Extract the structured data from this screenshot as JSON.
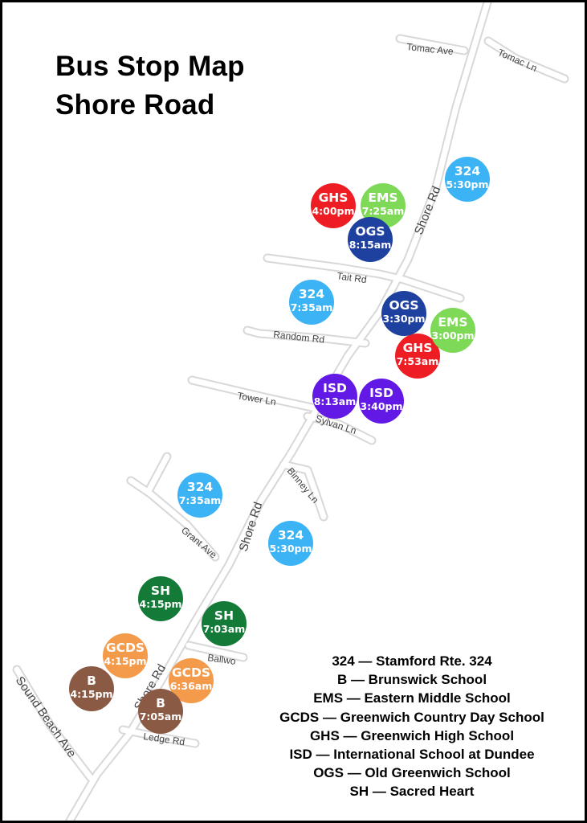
{
  "title": {
    "line1": "Bus Stop Map",
    "line2": "Shore Road"
  },
  "colors": {
    "324": "#3bb3f5",
    "B": "#8b5a44",
    "EMS": "#7ed957",
    "GCDS": "#f39a4b",
    "GHS": "#ee1d23",
    "ISD": "#6319e6",
    "OGS": "#1e409e",
    "SH": "#137a37"
  },
  "roads": {
    "shore_rd_upper": "Shore Rd",
    "shore_rd_middle": "Shore Rd",
    "shore_rd_lower": "Shore Rd",
    "tomac_ave": "Tomac Ave",
    "tomac_ln": "Tomac Ln",
    "tait_rd": "Tait Rd",
    "random_rd": "Random Rd",
    "tower_ln": "Tower Ln",
    "sylvan_ln": "Sylvan Ln",
    "binney_ln": "Binney Ln",
    "grant_ave": "Grant Ave",
    "ballwood": "Ballwo",
    "ledge_rd": "Ledge Rd",
    "sound_beach_ave": "Sound Beach Ave"
  },
  "stops": [
    {
      "id": "324-530-top",
      "code": "324",
      "time": "5:30pm"
    },
    {
      "id": "ghs-400",
      "code": "GHS",
      "time": "4:00pm"
    },
    {
      "id": "ems-725",
      "code": "EMS",
      "time": "7:25am"
    },
    {
      "id": "ogs-815",
      "code": "OGS",
      "time": "8:15am"
    },
    {
      "id": "324-735-mid",
      "code": "324",
      "time": "7:35am"
    },
    {
      "id": "ghs-753",
      "code": "GHS",
      "time": "7:53am"
    },
    {
      "id": "ogs-330",
      "code": "OGS",
      "time": "3:30pm"
    },
    {
      "id": "ems-300",
      "code": "EMS",
      "time": "3:00pm"
    },
    {
      "id": "isd-813",
      "code": "ISD",
      "time": "8:13am"
    },
    {
      "id": "isd-340",
      "code": "ISD",
      "time": "3:40pm"
    },
    {
      "id": "324-735-low",
      "code": "324",
      "time": "7:35am"
    },
    {
      "id": "324-530-low",
      "code": "324",
      "time": "5:30pm"
    },
    {
      "id": "sh-415",
      "code": "SH",
      "time": "4:15pm"
    },
    {
      "id": "sh-703",
      "code": "SH",
      "time": "7:03am"
    },
    {
      "id": "gcds-415",
      "code": "GCDS",
      "time": "4:15pm"
    },
    {
      "id": "gcds-636",
      "code": "GCDS",
      "time": "6:36am"
    },
    {
      "id": "b-415",
      "code": "B",
      "time": "4:15pm"
    },
    {
      "id": "b-705",
      "code": "B",
      "time": "7:05am"
    }
  ],
  "legend": [
    "324 — Stamford Rte. 324",
    "B — Brunswick School",
    "EMS — Eastern Middle School",
    "GCDS — Greenwich Country Day School",
    "GHS — Greenwich High School",
    "ISD — International School at Dundee",
    "OGS — Old Greenwich School",
    "SH — Sacred Heart"
  ]
}
